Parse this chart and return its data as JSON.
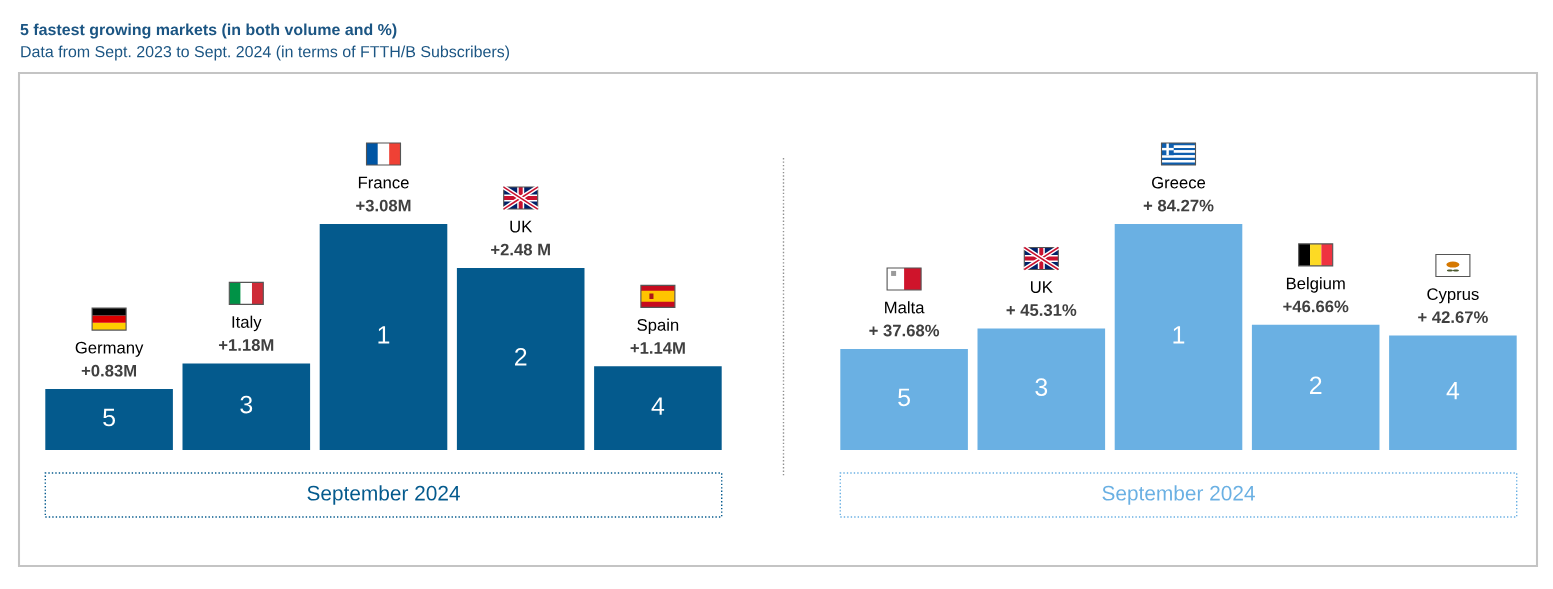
{
  "chart_data": [
    {
      "type": "bar",
      "title": "5 fastest growing markets (in both volume and %)",
      "subtitle": "Data from Sept. 2023 to Sept. 2024 (in terms of FTTH/B Subscribers)",
      "categories": [
        "Germany",
        "Italy",
        "France",
        "UK",
        "Spain"
      ],
      "values": [
        0.83,
        1.18,
        3.08,
        2.48,
        1.14
      ],
      "color": "#045a8d",
      "value_labels": [
        "+0.83M",
        "+1.18M",
        "+3.08M",
        "+2.48 M",
        "+1.14M"
      ],
      "annotations": [
        "5",
        "3",
        "1",
        "2",
        "4"
      ],
      "xlabel": "September 2024"
    },
    {
      "type": "bar",
      "categories": [
        "Malta",
        "UK",
        "Greece",
        "Belgium",
        "Cyprus"
      ],
      "values": [
        37.68,
        45.31,
        84.27,
        46.66,
        42.67
      ],
      "color": "#6ab0e3",
      "value_labels": [
        "+ 37.68%",
        "+ 45.31%",
        "+ 84.27%",
        "+46.66%",
        "+ 42.67%"
      ],
      "annotations": [
        "5",
        "3",
        "1",
        "2",
        "4"
      ],
      "xlabel": "September 2024"
    }
  ]
}
